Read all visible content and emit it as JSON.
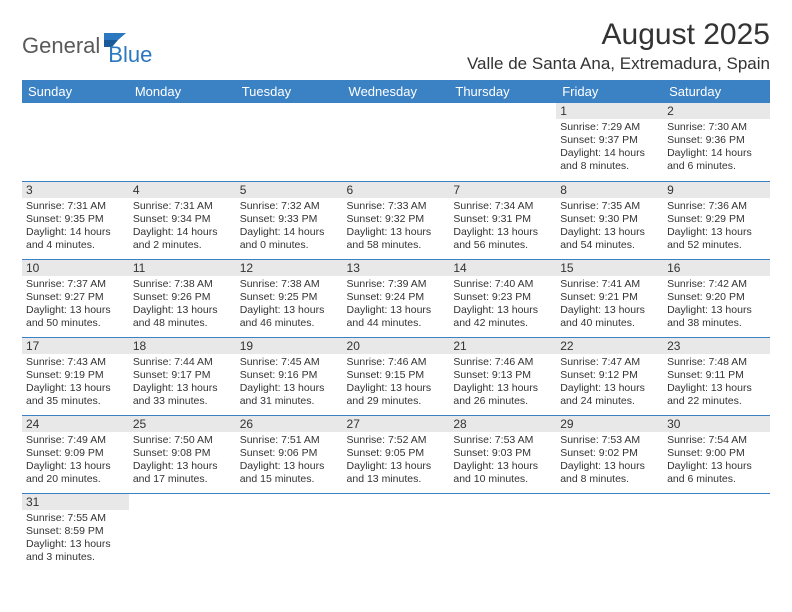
{
  "logo": {
    "part1": "General",
    "part2": "Blue"
  },
  "title": "August 2025",
  "location": "Valle de Santa Ana, Extremadura, Spain",
  "headerColor": "#3b82c4",
  "dayHeaders": [
    "Sunday",
    "Monday",
    "Tuesday",
    "Wednesday",
    "Thursday",
    "Friday",
    "Saturday"
  ],
  "weeks": [
    [
      null,
      null,
      null,
      null,
      null,
      {
        "n": "1",
        "sr": "7:29 AM",
        "ss": "9:37 PM",
        "dl": "14 hours and 8 minutes."
      },
      {
        "n": "2",
        "sr": "7:30 AM",
        "ss": "9:36 PM",
        "dl": "14 hours and 6 minutes."
      }
    ],
    [
      {
        "n": "3",
        "sr": "7:31 AM",
        "ss": "9:35 PM",
        "dl": "14 hours and 4 minutes."
      },
      {
        "n": "4",
        "sr": "7:31 AM",
        "ss": "9:34 PM",
        "dl": "14 hours and 2 minutes."
      },
      {
        "n": "5",
        "sr": "7:32 AM",
        "ss": "9:33 PM",
        "dl": "14 hours and 0 minutes."
      },
      {
        "n": "6",
        "sr": "7:33 AM",
        "ss": "9:32 PM",
        "dl": "13 hours and 58 minutes."
      },
      {
        "n": "7",
        "sr": "7:34 AM",
        "ss": "9:31 PM",
        "dl": "13 hours and 56 minutes."
      },
      {
        "n": "8",
        "sr": "7:35 AM",
        "ss": "9:30 PM",
        "dl": "13 hours and 54 minutes."
      },
      {
        "n": "9",
        "sr": "7:36 AM",
        "ss": "9:29 PM",
        "dl": "13 hours and 52 minutes."
      }
    ],
    [
      {
        "n": "10",
        "sr": "7:37 AM",
        "ss": "9:27 PM",
        "dl": "13 hours and 50 minutes."
      },
      {
        "n": "11",
        "sr": "7:38 AM",
        "ss": "9:26 PM",
        "dl": "13 hours and 48 minutes."
      },
      {
        "n": "12",
        "sr": "7:38 AM",
        "ss": "9:25 PM",
        "dl": "13 hours and 46 minutes."
      },
      {
        "n": "13",
        "sr": "7:39 AM",
        "ss": "9:24 PM",
        "dl": "13 hours and 44 minutes."
      },
      {
        "n": "14",
        "sr": "7:40 AM",
        "ss": "9:23 PM",
        "dl": "13 hours and 42 minutes."
      },
      {
        "n": "15",
        "sr": "7:41 AM",
        "ss": "9:21 PM",
        "dl": "13 hours and 40 minutes."
      },
      {
        "n": "16",
        "sr": "7:42 AM",
        "ss": "9:20 PM",
        "dl": "13 hours and 38 minutes."
      }
    ],
    [
      {
        "n": "17",
        "sr": "7:43 AM",
        "ss": "9:19 PM",
        "dl": "13 hours and 35 minutes."
      },
      {
        "n": "18",
        "sr": "7:44 AM",
        "ss": "9:17 PM",
        "dl": "13 hours and 33 minutes."
      },
      {
        "n": "19",
        "sr": "7:45 AM",
        "ss": "9:16 PM",
        "dl": "13 hours and 31 minutes."
      },
      {
        "n": "20",
        "sr": "7:46 AM",
        "ss": "9:15 PM",
        "dl": "13 hours and 29 minutes."
      },
      {
        "n": "21",
        "sr": "7:46 AM",
        "ss": "9:13 PM",
        "dl": "13 hours and 26 minutes."
      },
      {
        "n": "22",
        "sr": "7:47 AM",
        "ss": "9:12 PM",
        "dl": "13 hours and 24 minutes."
      },
      {
        "n": "23",
        "sr": "7:48 AM",
        "ss": "9:11 PM",
        "dl": "13 hours and 22 minutes."
      }
    ],
    [
      {
        "n": "24",
        "sr": "7:49 AM",
        "ss": "9:09 PM",
        "dl": "13 hours and 20 minutes."
      },
      {
        "n": "25",
        "sr": "7:50 AM",
        "ss": "9:08 PM",
        "dl": "13 hours and 17 minutes."
      },
      {
        "n": "26",
        "sr": "7:51 AM",
        "ss": "9:06 PM",
        "dl": "13 hours and 15 minutes."
      },
      {
        "n": "27",
        "sr": "7:52 AM",
        "ss": "9:05 PM",
        "dl": "13 hours and 13 minutes."
      },
      {
        "n": "28",
        "sr": "7:53 AM",
        "ss": "9:03 PM",
        "dl": "13 hours and 10 minutes."
      },
      {
        "n": "29",
        "sr": "7:53 AM",
        "ss": "9:02 PM",
        "dl": "13 hours and 8 minutes."
      },
      {
        "n": "30",
        "sr": "7:54 AM",
        "ss": "9:00 PM",
        "dl": "13 hours and 6 minutes."
      }
    ],
    [
      {
        "n": "31",
        "sr": "7:55 AM",
        "ss": "8:59 PM",
        "dl": "13 hours and 3 minutes."
      },
      null,
      null,
      null,
      null,
      null,
      null
    ]
  ],
  "labels": {
    "sunrise": "Sunrise:",
    "sunset": "Sunset:",
    "daylight": "Daylight:"
  }
}
